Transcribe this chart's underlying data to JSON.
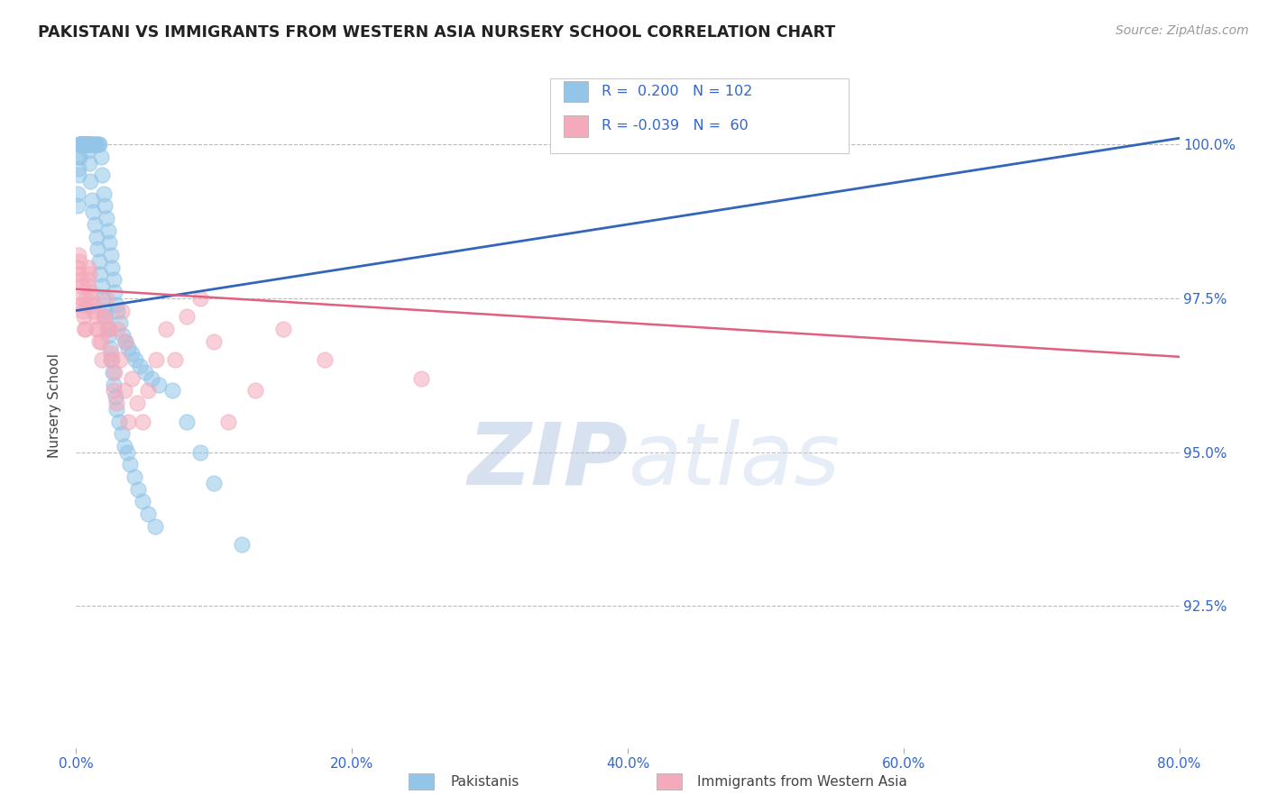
{
  "title": "PAKISTANI VS IMMIGRANTS FROM WESTERN ASIA NURSERY SCHOOL CORRELATION CHART",
  "source": "Source: ZipAtlas.com",
  "xlabel_pakistanis": "Pakistanis",
  "xlabel_immigrants": "Immigrants from Western Asia",
  "ylabel": "Nursery School",
  "watermark_zip": "ZIP",
  "watermark_atlas": "atlas",
  "xlim": [
    0.0,
    80.0
  ],
  "ylim": [
    90.2,
    101.3
  ],
  "yticks": [
    92.5,
    95.0,
    97.5,
    100.0
  ],
  "xticks": [
    0.0,
    20.0,
    40.0,
    60.0,
    80.0
  ],
  "blue_R": 0.2,
  "blue_N": 102,
  "pink_R": -0.039,
  "pink_N": 60,
  "blue_color": "#92C5E8",
  "pink_color": "#F4AABB",
  "blue_line_color": "#3366BB",
  "pink_line_color": "#E06080",
  "legend_R_color": "#3366CC",
  "legend_N_color": "#3366CC",
  "blue_line_x0": 0.0,
  "blue_line_y0": 97.3,
  "blue_line_x1": 80.0,
  "blue_line_y1": 100.1,
  "pink_line_x0": 0.0,
  "pink_line_y0": 97.65,
  "pink_line_x1": 80.0,
  "pink_line_y1": 96.55,
  "blue_scatter_x": [
    0.1,
    0.15,
    0.2,
    0.25,
    0.3,
    0.35,
    0.4,
    0.45,
    0.5,
    0.55,
    0.6,
    0.65,
    0.7,
    0.75,
    0.8,
    0.85,
    0.9,
    0.95,
    1.0,
    1.1,
    1.2,
    1.3,
    1.4,
    1.5,
    1.6,
    1.7,
    1.8,
    1.9,
    2.0,
    2.1,
    2.2,
    2.3,
    2.4,
    2.5,
    2.6,
    2.7,
    2.8,
    2.9,
    3.0,
    3.2,
    3.4,
    3.6,
    3.8,
    4.0,
    4.3,
    4.6,
    5.0,
    5.5,
    6.0,
    7.0,
    8.0,
    9.0,
    10.0,
    12.0,
    0.12,
    0.18,
    0.22,
    0.28,
    0.32,
    0.38,
    0.42,
    0.48,
    0.52,
    0.58,
    0.62,
    0.68,
    0.72,
    0.78,
    0.82,
    0.88,
    0.92,
    0.98,
    1.05,
    1.15,
    1.25,
    1.35,
    1.45,
    1.55,
    1.65,
    1.75,
    1.85,
    1.95,
    2.05,
    2.15,
    2.25,
    2.35,
    2.45,
    2.55,
    2.65,
    2.75,
    2.85,
    2.95,
    3.1,
    3.3,
    3.5,
    3.7,
    3.9,
    4.2,
    4.5,
    4.8,
    5.2,
    5.7
  ],
  "blue_scatter_y": [
    99.0,
    99.5,
    99.8,
    100.0,
    100.0,
    100.0,
    100.0,
    100.0,
    100.0,
    100.0,
    100.0,
    100.0,
    100.0,
    100.0,
    100.0,
    100.0,
    100.0,
    100.0,
    100.0,
    100.0,
    100.0,
    100.0,
    100.0,
    100.0,
    100.0,
    100.0,
    99.8,
    99.5,
    99.2,
    99.0,
    98.8,
    98.6,
    98.4,
    98.2,
    98.0,
    97.8,
    97.6,
    97.4,
    97.3,
    97.1,
    96.9,
    96.8,
    96.7,
    96.6,
    96.5,
    96.4,
    96.3,
    96.2,
    96.1,
    96.0,
    95.5,
    95.0,
    94.5,
    93.5,
    99.2,
    99.6,
    99.8,
    100.0,
    100.0,
    100.0,
    100.0,
    100.0,
    100.0,
    100.0,
    100.0,
    100.0,
    100.0,
    100.0,
    100.0,
    100.0,
    99.9,
    99.7,
    99.4,
    99.1,
    98.9,
    98.7,
    98.5,
    98.3,
    98.1,
    97.9,
    97.7,
    97.5,
    97.3,
    97.2,
    97.0,
    96.9,
    96.7,
    96.5,
    96.3,
    96.1,
    95.9,
    95.7,
    95.5,
    95.3,
    95.1,
    95.0,
    94.8,
    94.6,
    94.4,
    94.2,
    94.0,
    93.8
  ],
  "pink_scatter_x": [
    0.1,
    0.2,
    0.3,
    0.4,
    0.5,
    0.6,
    0.7,
    0.8,
    0.9,
    1.0,
    1.2,
    1.4,
    1.6,
    1.8,
    2.0,
    2.2,
    2.4,
    2.6,
    2.8,
    3.0,
    3.3,
    3.6,
    4.0,
    4.4,
    4.8,
    5.2,
    5.8,
    6.5,
    7.2,
    8.0,
    9.0,
    10.0,
    11.0,
    13.0,
    15.0,
    18.0,
    25.0,
    40.0,
    0.15,
    0.25,
    0.35,
    0.45,
    0.55,
    0.65,
    0.75,
    0.85,
    0.95,
    1.1,
    1.3,
    1.5,
    1.7,
    1.9,
    2.1,
    2.3,
    2.5,
    2.7,
    2.9,
    3.2,
    3.5,
    3.8
  ],
  "pink_scatter_y": [
    98.0,
    98.2,
    97.8,
    97.5,
    97.3,
    97.0,
    97.5,
    97.8,
    98.0,
    97.6,
    97.4,
    97.2,
    97.0,
    96.8,
    97.2,
    97.5,
    97.0,
    96.5,
    96.3,
    97.0,
    97.3,
    96.8,
    96.2,
    95.8,
    95.5,
    96.0,
    96.5,
    97.0,
    96.5,
    97.2,
    97.5,
    96.8,
    95.5,
    96.0,
    97.0,
    96.5,
    96.2,
    100.0,
    97.9,
    98.1,
    97.7,
    97.4,
    97.2,
    97.0,
    97.4,
    97.7,
    97.9,
    97.5,
    97.3,
    97.0,
    96.8,
    96.5,
    97.2,
    97.0,
    96.6,
    96.0,
    95.8,
    96.5,
    96.0,
    95.5
  ]
}
